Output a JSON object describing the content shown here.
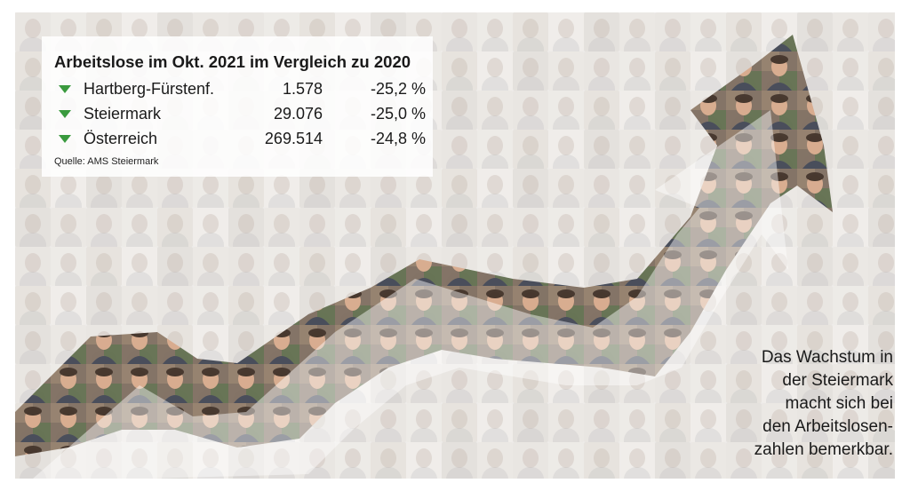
{
  "stats": {
    "title": "Arbeitslose im Okt. 2021 im Vergleich zu 2020",
    "rows": [
      {
        "name": "Hartberg-Fürstenf.",
        "value": "1.578",
        "change": "-25,2 %",
        "trend": "down"
      },
      {
        "name": "Steiermark",
        "value": "29.076",
        "change": "-25,0 %",
        "trend": "down"
      },
      {
        "name": "Österreich",
        "value": "269.514",
        "change": "-24,8 %",
        "trend": "down"
      }
    ],
    "source": "Quelle: AMS Steiermark"
  },
  "caption": {
    "lines": [
      "Das Wachstum in",
      "der Steiermark",
      "macht sich bei",
      "den Arbeitslosen-",
      "zahlen bemerkbar."
    ]
  },
  "colors": {
    "trend_down": "#3a9a3e",
    "text": "#1a1a1a",
    "box_bg": "#ffffff"
  },
  "image": {
    "description_icon": "people-collage-arrow-icon"
  }
}
